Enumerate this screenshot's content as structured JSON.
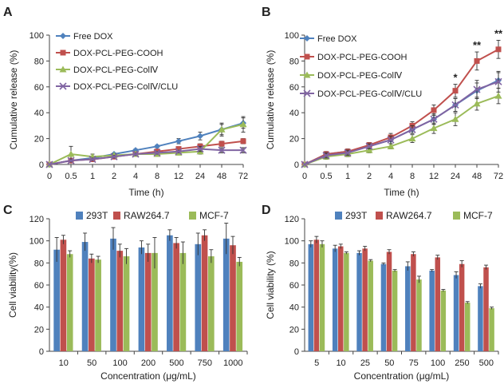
{
  "chart_data": [
    {
      "panel": "A",
      "type": "line",
      "x": [
        "0",
        "0.5",
        "1",
        "2",
        "4",
        "8",
        "12",
        "24",
        "48",
        "72"
      ],
      "xlabel": "Time (h)",
      "ylabel": "Cumulative release (%)",
      "ylim": [
        0,
        100
      ],
      "yticks": [
        0,
        20,
        40,
        60,
        80,
        100
      ],
      "legend": "top-left",
      "series": [
        {
          "name": "Free DOX",
          "color": "#4f81bd",
          "marker": "diamond",
          "values": [
            0,
            3,
            5,
            8,
            11,
            14,
            18,
            22,
            27,
            32
          ],
          "errors": [
            0,
            1,
            1,
            1,
            1,
            1,
            2,
            3,
            4,
            4
          ]
        },
        {
          "name": "DOX-PCL-PEG-COOH",
          "color": "#c0504d",
          "marker": "square",
          "values": [
            0,
            3,
            4,
            6,
            8,
            10,
            12,
            14,
            16,
            18
          ],
          "errors": [
            0,
            1,
            1,
            1,
            1,
            1,
            1,
            2,
            2,
            2
          ]
        },
        {
          "name": "DOX-PCL-PEG-ColⅣ",
          "color": "#9bbb59",
          "marker": "triangle",
          "values": [
            0,
            8,
            6,
            7,
            8,
            8,
            9,
            10,
            27,
            31
          ],
          "errors": [
            0,
            6,
            2,
            1,
            1,
            1,
            1,
            2,
            5,
            6
          ]
        },
        {
          "name": "DOX-PCL-PEG-ColⅣ/CLU",
          "color": "#8064a2",
          "marker": "x",
          "values": [
            0,
            3,
            4,
            6,
            8,
            9,
            10,
            12,
            11,
            11
          ],
          "errors": [
            0,
            1,
            1,
            1,
            1,
            1,
            1,
            2,
            2,
            2
          ]
        }
      ]
    },
    {
      "panel": "B",
      "type": "line",
      "x": [
        "0",
        "0.5",
        "1",
        "2",
        "4",
        "8",
        "12",
        "24",
        "48",
        "72"
      ],
      "xlabel": "Time (h)",
      "ylabel": "Cumulative release (%)",
      "ylim": [
        0,
        100
      ],
      "yticks": [
        0,
        20,
        40,
        60,
        80,
        100
      ],
      "legend": "top-left",
      "annotations": [
        {
          "x": "24",
          "text": "*"
        },
        {
          "x": "48",
          "text": "**"
        },
        {
          "x": "72",
          "text": "**"
        }
      ],
      "series": [
        {
          "name": "Free DOX",
          "color": "#4f81bd",
          "marker": "diamond",
          "values": [
            0,
            8,
            10,
            14,
            19,
            27,
            35,
            46,
            57,
            65
          ],
          "errors": [
            0,
            2,
            2,
            2,
            3,
            3,
            4,
            5,
            6,
            6
          ]
        },
        {
          "name": "DOX-PCL-PEG-COOH",
          "color": "#c0504d",
          "marker": "square",
          "values": [
            0,
            8,
            10,
            15,
            21,
            30,
            42,
            57,
            80,
            89
          ],
          "errors": [
            0,
            2,
            2,
            2,
            3,
            3,
            4,
            5,
            7,
            7
          ]
        },
        {
          "name": "DOX-PCL-PEG-ColⅣ",
          "color": "#9bbb59",
          "marker": "triangle",
          "values": [
            0,
            6,
            8,
            11,
            14,
            20,
            28,
            35,
            47,
            53
          ],
          "errors": [
            0,
            2,
            2,
            2,
            2,
            3,
            4,
            5,
            5,
            6
          ]
        },
        {
          "name": "DOX-PCL-PEG-ColⅣ/CLU",
          "color": "#8064a2",
          "marker": "x",
          "values": [
            0,
            7,
            9,
            14,
            19,
            27,
            35,
            46,
            58,
            64
          ],
          "errors": [
            0,
            2,
            2,
            2,
            3,
            3,
            4,
            5,
            7,
            8
          ]
        }
      ]
    },
    {
      "panel": "C",
      "type": "bar",
      "categories": [
        "10",
        "50",
        "100",
        "200",
        "500",
        "750",
        "1000"
      ],
      "xlabel": "Concentration (μg/mL)",
      "ylabel": "Cell viability(%)",
      "ylim": [
        0,
        120
      ],
      "yticks": [
        0,
        20,
        40,
        60,
        80,
        100,
        120
      ],
      "legend": "top",
      "series": [
        {
          "name": "293T",
          "color": "#4f81bd",
          "values": [
            92,
            99,
            102,
            94,
            105,
            97,
            102
          ],
          "errors": [
            11,
            8,
            10,
            6,
            5,
            10,
            14
          ]
        },
        {
          "name": "RAW264.7",
          "color": "#c0504d",
          "values": [
            101,
            84,
            91,
            89,
            98,
            105,
            96
          ],
          "errors": [
            4,
            4,
            6,
            8,
            5,
            5,
            8
          ]
        },
        {
          "name": "MCF-7",
          "color": "#9bbb59",
          "values": [
            88,
            83,
            86,
            89,
            89,
            86,
            81
          ],
          "errors": [
            3,
            3,
            7,
            14,
            10,
            6,
            4
          ]
        }
      ]
    },
    {
      "panel": "D",
      "type": "bar",
      "categories": [
        "5",
        "10",
        "25",
        "50",
        "75",
        "100",
        "250",
        "500"
      ],
      "xlabel": "Concentration (μg/mL)",
      "ylabel": "Cell viability (%)",
      "ylim": [
        0,
        120
      ],
      "yticks": [
        0,
        20,
        40,
        60,
        80,
        100,
        120
      ],
      "legend": "top",
      "series": [
        {
          "name": "293T",
          "color": "#4f81bd",
          "values": [
            97,
            93,
            89,
            79,
            77,
            73,
            69,
            59
          ],
          "errors": [
            3,
            3,
            2,
            1,
            4,
            1,
            3,
            2
          ]
        },
        {
          "name": "RAW264.7",
          "color": "#c0504d",
          "values": [
            101,
            95,
            93,
            90,
            88,
            85,
            79,
            76
          ],
          "errors": [
            3,
            2,
            2,
            2,
            2,
            2,
            3,
            2
          ]
        },
        {
          "name": "MCF-7",
          "color": "#9bbb59",
          "values": [
            97,
            89,
            82,
            73,
            65,
            55,
            44,
            39
          ],
          "errors": [
            3,
            1,
            1,
            1,
            3,
            1,
            1,
            1
          ]
        }
      ]
    }
  ]
}
